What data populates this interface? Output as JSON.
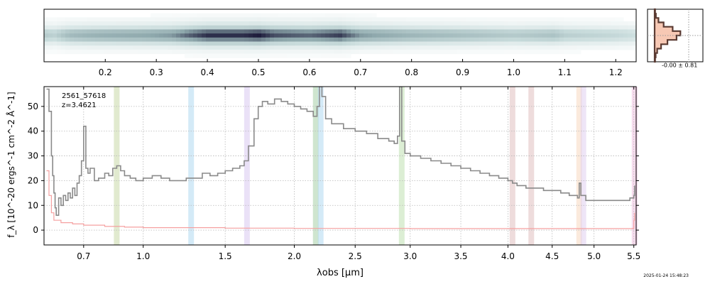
{
  "chart_data": [
    {
      "type": "heatmap",
      "panel": "2d-spectrum",
      "description_axis": "top",
      "top_tick_labels": [
        "0.2",
        "0.3",
        "0.4",
        "0.5",
        "0.6",
        "0.7",
        "0.8",
        "0.9",
        "1.0",
        "1.1",
        "1.2"
      ],
      "top_tick_values": [
        0.2,
        0.3,
        0.4,
        0.5,
        0.6,
        0.7,
        0.8,
        0.9,
        1.0,
        1.1,
        1.2
      ],
      "top_axis_range": [
        0.08,
        1.24
      ],
      "colormap": [
        "#ffffff",
        "#c9dcdc",
        "#8fa9ad",
        "#1c1a3a"
      ],
      "trace_strength": [
        [
          0.06,
          0.9
        ],
        [
          0.08,
          0.45
        ],
        [
          0.1,
          0.4
        ],
        [
          0.13,
          0.55
        ],
        [
          0.17,
          0.6
        ],
        [
          0.2,
          0.62
        ],
        [
          0.27,
          0.65
        ],
        [
          0.33,
          0.7
        ],
        [
          0.36,
          0.82
        ],
        [
          0.4,
          0.95
        ],
        [
          0.47,
          0.95
        ],
        [
          0.5,
          1.0
        ],
        [
          0.53,
          0.88
        ],
        [
          0.6,
          0.82
        ],
        [
          0.66,
          0.92
        ],
        [
          0.7,
          0.7
        ],
        [
          0.8,
          0.58
        ],
        [
          0.9,
          0.52
        ],
        [
          1.0,
          0.45
        ],
        [
          1.08,
          0.5
        ],
        [
          1.1,
          0.42
        ],
        [
          1.2,
          0.36
        ],
        [
          1.24,
          0.3
        ]
      ]
    },
    {
      "type": "area",
      "panel": "1d-profile",
      "annotation": "-0.00 ± 0.81",
      "profile": [
        0.02,
        0.05,
        0.15,
        0.35,
        0.7,
        1.0,
        0.85,
        0.5,
        0.25,
        0.1,
        0.04,
        0.02
      ],
      "line_color": "#5a3a32",
      "fill_color": "#f7c8b4"
    },
    {
      "type": "line",
      "panel": "1d-spectrum",
      "ylabel": "f_λ [10^-20 ergs^-1 cm^-2 Å^-1]",
      "xlabel": "λobs [μm]",
      "ylim": [
        -6,
        58
      ],
      "xlim": [
        0.53,
        5.53
      ],
      "xscale": "sqrt",
      "grid": true,
      "x_tick_labels": [
        "0.7",
        "1.0",
        "1.5",
        "2.0",
        "2.5",
        "3.0",
        "3.5",
        "4.0",
        "4.5",
        "5.0",
        "5.5"
      ],
      "x_tick_values": [
        0.7,
        1.0,
        1.5,
        2.0,
        2.5,
        3.0,
        3.5,
        4.0,
        4.5,
        5.0,
        5.5
      ],
      "y_tick_labels": [
        "0",
        "10",
        "20",
        "30",
        "40",
        "50"
      ],
      "y_tick_values": [
        0,
        10,
        20,
        30,
        40,
        50
      ],
      "annotations": [
        "2561_57618",
        "z=3.4621"
      ],
      "series": [
        {
          "role": "flux",
          "color": "#8a8a8a",
          "points": [
            [
              0.54,
              57
            ],
            [
              0.55,
              48
            ],
            [
              0.56,
              30
            ],
            [
              0.565,
              22
            ],
            [
              0.57,
              15
            ],
            [
              0.575,
              9
            ],
            [
              0.58,
              6
            ],
            [
              0.59,
              13
            ],
            [
              0.6,
              10
            ],
            [
              0.61,
              14
            ],
            [
              0.62,
              12
            ],
            [
              0.63,
              15
            ],
            [
              0.64,
              13
            ],
            [
              0.65,
              17
            ],
            [
              0.66,
              14
            ],
            [
              0.67,
              19
            ],
            [
              0.68,
              22
            ],
            [
              0.69,
              28
            ],
            [
              0.7,
              42
            ],
            [
              0.71,
              25
            ],
            [
              0.72,
              23
            ],
            [
              0.73,
              25
            ],
            [
              0.75,
              20
            ],
            [
              0.77,
              21
            ],
            [
              0.8,
              23
            ],
            [
              0.82,
              22
            ],
            [
              0.84,
              25
            ],
            [
              0.86,
              26
            ],
            [
              0.88,
              24
            ],
            [
              0.9,
              22
            ],
            [
              0.93,
              21
            ],
            [
              0.96,
              20
            ],
            [
              1.0,
              21
            ],
            [
              1.05,
              22
            ],
            [
              1.1,
              21
            ],
            [
              1.15,
              20
            ],
            [
              1.2,
              20
            ],
            [
              1.25,
              21
            ],
            [
              1.3,
              21
            ],
            [
              1.35,
              23
            ],
            [
              1.4,
              22
            ],
            [
              1.45,
              23
            ],
            [
              1.5,
              24
            ],
            [
              1.55,
              25
            ],
            [
              1.6,
              26
            ],
            [
              1.63,
              28
            ],
            [
              1.66,
              34
            ],
            [
              1.7,
              45
            ],
            [
              1.73,
              50
            ],
            [
              1.76,
              52
            ],
            [
              1.8,
              51
            ],
            [
              1.85,
              53
            ],
            [
              1.9,
              52
            ],
            [
              1.95,
              51
            ],
            [
              2.0,
              50
            ],
            [
              2.05,
              49
            ],
            [
              2.1,
              48
            ],
            [
              2.15,
              46
            ],
            [
              2.18,
              50
            ],
            [
              2.2,
              58
            ],
            [
              2.22,
              54
            ],
            [
              2.25,
              45
            ],
            [
              2.3,
              43
            ],
            [
              2.4,
              41
            ],
            [
              2.5,
              40
            ],
            [
              2.6,
              39
            ],
            [
              2.7,
              37
            ],
            [
              2.8,
              36
            ],
            [
              2.85,
              35
            ],
            [
              2.88,
              38
            ],
            [
              2.9,
              58
            ],
            [
              2.92,
              36
            ],
            [
              2.95,
              31
            ],
            [
              3.0,
              30
            ],
            [
              3.1,
              29
            ],
            [
              3.2,
              28
            ],
            [
              3.3,
              27
            ],
            [
              3.4,
              26
            ],
            [
              3.5,
              25
            ],
            [
              3.6,
              24
            ],
            [
              3.7,
              23
            ],
            [
              3.8,
              22
            ],
            [
              3.9,
              21
            ],
            [
              4.0,
              20
            ],
            [
              4.05,
              19
            ],
            [
              4.1,
              18
            ],
            [
              4.2,
              17
            ],
            [
              4.3,
              17
            ],
            [
              4.4,
              16
            ],
            [
              4.5,
              16
            ],
            [
              4.6,
              15
            ],
            [
              4.7,
              14
            ],
            [
              4.75,
              14
            ],
            [
              4.8,
              13
            ],
            [
              4.82,
              19
            ],
            [
              4.84,
              14
            ],
            [
              4.9,
              12
            ],
            [
              5.0,
              12
            ],
            [
              5.1,
              12
            ],
            [
              5.2,
              12
            ],
            [
              5.3,
              12
            ],
            [
              5.4,
              12
            ],
            [
              5.45,
              13
            ],
            [
              5.5,
              14
            ],
            [
              5.51,
              18
            ]
          ]
        },
        {
          "role": "error",
          "color": "#f5a0a0",
          "points": [
            [
              0.54,
              24
            ],
            [
              0.55,
              14
            ],
            [
              0.56,
              7
            ],
            [
              0.57,
              4
            ],
            [
              0.6,
              3
            ],
            [
              0.65,
              2.5
            ],
            [
              0.7,
              2
            ],
            [
              0.8,
              1.5
            ],
            [
              0.9,
              1.2
            ],
            [
              1.0,
              1
            ],
            [
              1.5,
              0.8
            ],
            [
              2.0,
              0.7
            ],
            [
              3.0,
              0.6
            ],
            [
              4.0,
              0.6
            ],
            [
              5.0,
              0.6
            ],
            [
              5.48,
              0.7
            ],
            [
              5.5,
              4
            ],
            [
              5.51,
              7
            ]
          ]
        }
      ],
      "line_bands": [
        {
          "x": 0.86,
          "color": "#c8d8a8"
        },
        {
          "x": 1.28,
          "color": "#b0d8f0"
        },
        {
          "x": 1.65,
          "color": "#d8c8f0"
        },
        {
          "x": 2.17,
          "color": "#a8d0a8"
        },
        {
          "x": 2.21,
          "color": "#b0d8f0"
        },
        {
          "x": 2.92,
          "color": "#c0e0b0"
        },
        {
          "x": 4.05,
          "color": "#e0c0c0"
        },
        {
          "x": 4.26,
          "color": "#e0c0c0"
        },
        {
          "x": 4.82,
          "color": "#f8d8c0"
        },
        {
          "x": 4.87,
          "color": "#e0d0f0"
        },
        {
          "x": 5.51,
          "color": "#f0c0e0"
        }
      ]
    }
  ],
  "footer": {
    "timestamp": "2025-01-24 15:48:23"
  }
}
